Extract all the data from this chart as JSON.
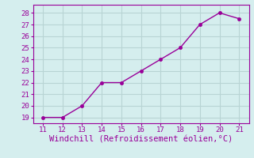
{
  "x": [
    11,
    12,
    13,
    14,
    15,
    16,
    17,
    18,
    19,
    20,
    21
  ],
  "y": [
    19,
    19,
    20,
    22,
    22,
    23,
    24,
    25,
    27,
    28,
    27.5
  ],
  "line_color": "#990099",
  "marker": "o",
  "marker_size": 3,
  "xlabel": "Windchill (Refroidissement éolien,°C)",
  "xlim": [
    10.5,
    21.5
  ],
  "ylim": [
    18.5,
    28.7
  ],
  "xticks": [
    11,
    12,
    13,
    14,
    15,
    16,
    17,
    18,
    19,
    20,
    21
  ],
  "yticks": [
    19,
    20,
    21,
    22,
    23,
    24,
    25,
    26,
    27,
    28
  ],
  "background_color": "#d5eeee",
  "grid_color": "#b8d4d4",
  "tick_color": "#990099",
  "label_color": "#990099",
  "tick_fontsize": 6.5,
  "xlabel_fontsize": 7.5,
  "line_width": 1.0
}
